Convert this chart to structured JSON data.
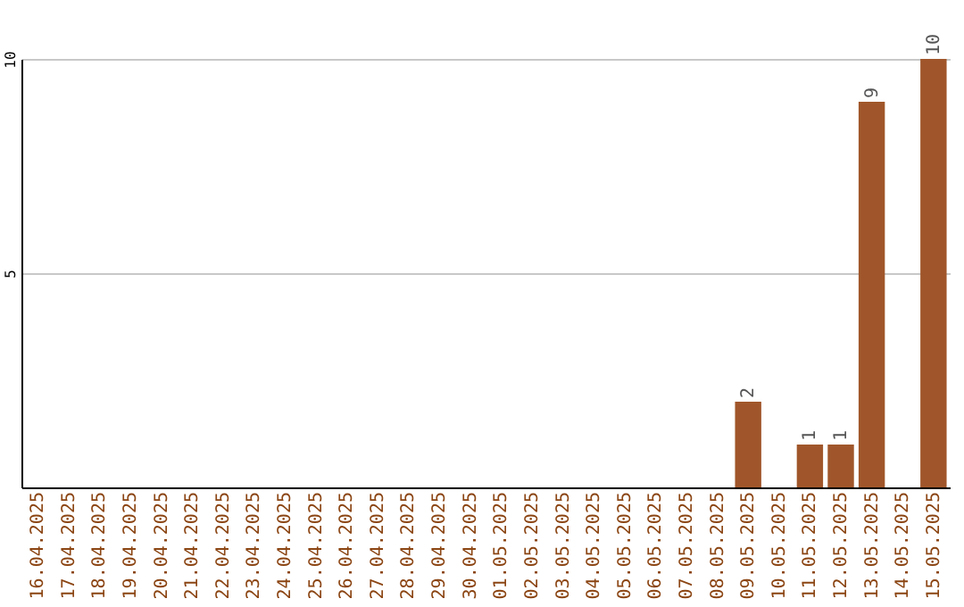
{
  "chart_data": {
    "type": "bar",
    "categories": [
      "16.04.2025",
      "17.04.2025",
      "18.04.2025",
      "19.04.2025",
      "20.04.2025",
      "21.04.2025",
      "22.04.2025",
      "23.04.2025",
      "24.04.2025",
      "25.04.2025",
      "26.04.2025",
      "27.04.2025",
      "28.04.2025",
      "29.04.2025",
      "30.04.2025",
      "01.05.2025",
      "02.05.2025",
      "03.05.2025",
      "04.05.2025",
      "05.05.2025",
      "06.05.2025",
      "07.05.2025",
      "08.05.2025",
      "09.05.2025",
      "10.05.2025",
      "11.05.2025",
      "12.05.2025",
      "13.05.2025",
      "14.05.2025",
      "15.05.2025"
    ],
    "values": [
      0,
      0,
      0,
      0,
      0,
      0,
      0,
      0,
      0,
      0,
      0,
      0,
      0,
      0,
      0,
      0,
      0,
      0,
      0,
      0,
      0,
      0,
      0,
      2,
      0,
      1,
      1,
      9,
      0,
      10
    ],
    "value_labels": [
      null,
      null,
      null,
      null,
      null,
      null,
      null,
      null,
      null,
      null,
      null,
      null,
      null,
      null,
      null,
      null,
      null,
      null,
      null,
      null,
      null,
      null,
      null,
      "2",
      null,
      "1",
      "1",
      "9",
      null,
      "10"
    ],
    "color": "#a0562a",
    "ylim": [
      0,
      10
    ],
    "yticks": [
      5,
      10
    ],
    "grid": "y"
  }
}
